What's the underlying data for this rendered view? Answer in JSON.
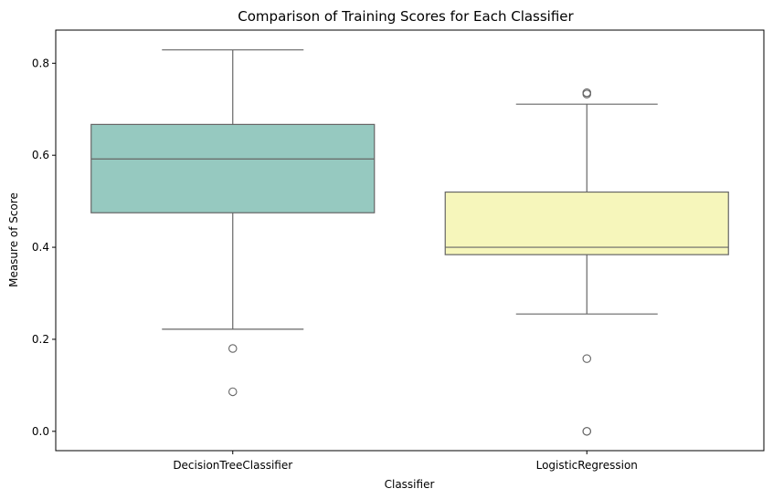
{
  "chart_data": {
    "type": "box",
    "title": "Comparison of Training Scores for Each Classifier",
    "xlabel": "Classifier",
    "ylabel": "Measure of Score",
    "categories": [
      "DecisionTreeClassifier",
      "LogisticRegression"
    ],
    "ylim": [
      -0.042,
      0.872
    ],
    "yticks": [
      0.0,
      0.2,
      0.4,
      0.6,
      0.8
    ],
    "ytick_labels": [
      "0.0",
      "0.2",
      "0.4",
      "0.6",
      "0.8"
    ],
    "grid": false,
    "legend": "none",
    "boxes": [
      {
        "category": "DecisionTreeClassifier",
        "whisker_low": 0.222,
        "q1": 0.475,
        "median": 0.592,
        "q3": 0.667,
        "whisker_high": 0.829,
        "outliers": [
          0.18,
          0.086
        ],
        "color": "#96c9c0"
      },
      {
        "category": "LogisticRegression",
        "whisker_low": 0.255,
        "q1": 0.384,
        "median": 0.4,
        "q3": 0.52,
        "whisker_high": 0.711,
        "outliers": [
          0.736,
          0.733,
          0.158,
          0.0,
          0.0
        ],
        "color": "#f6f6bb"
      }
    ]
  }
}
